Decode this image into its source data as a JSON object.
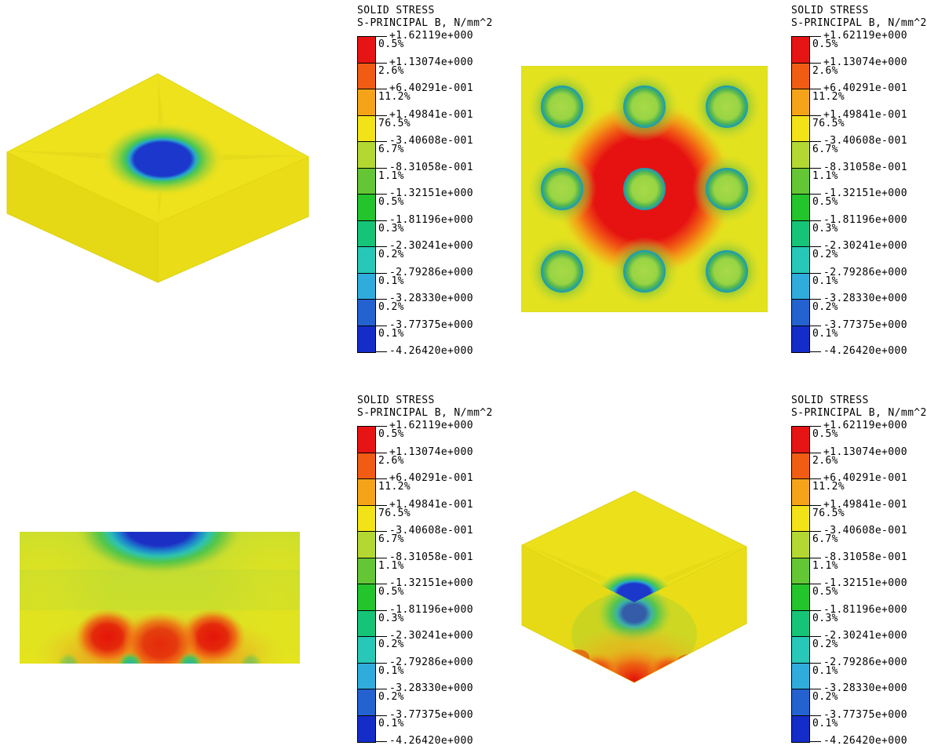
{
  "legend": {
    "title_line1": "SOLID STRESS",
    "title_line2": "S-PRINCIPAL B, N/mm^2",
    "min_value": "-4.26420e+000",
    "bands": [
      {
        "upper": "+1.62119e+000",
        "pct": "0.5%",
        "color": "#e61414"
      },
      {
        "upper": "+1.13074e+000",
        "pct": "2.6%",
        "color": "#f15c14"
      },
      {
        "upper": "+6.40291e-001",
        "pct": "11.2%",
        "color": "#f5a41a"
      },
      {
        "upper": "+1.49841e-001",
        "pct": "76.5%",
        "color": "#f2e318"
      },
      {
        "upper": "-3.40608e-001",
        "pct": "6.7%",
        "color": "#b4d832"
      },
      {
        "upper": "-8.31058e-001",
        "pct": "1.1%",
        "color": "#64c634"
      },
      {
        "upper": "-1.32151e+000",
        "pct": "0.5%",
        "color": "#24c42c"
      },
      {
        "upper": "-1.81196e+000",
        "pct": "0.3%",
        "color": "#16c478"
      },
      {
        "upper": "-2.30241e+000",
        "pct": "0.2%",
        "color": "#28c8b8"
      },
      {
        "upper": "-2.79286e+000",
        "pct": "0.1%",
        "color": "#30acdc"
      },
      {
        "upper": "-3.28330e+000",
        "pct": "0.2%",
        "color": "#2462d0"
      },
      {
        "upper": "-3.77375e+000",
        "pct": "0.1%",
        "color": "#142cc8"
      }
    ]
  },
  "views": {
    "top_left": "isometric view of plate",
    "top_right": "plan view of plate",
    "bottom_left": "front section view",
    "bottom_right": "isometric section view"
  }
}
